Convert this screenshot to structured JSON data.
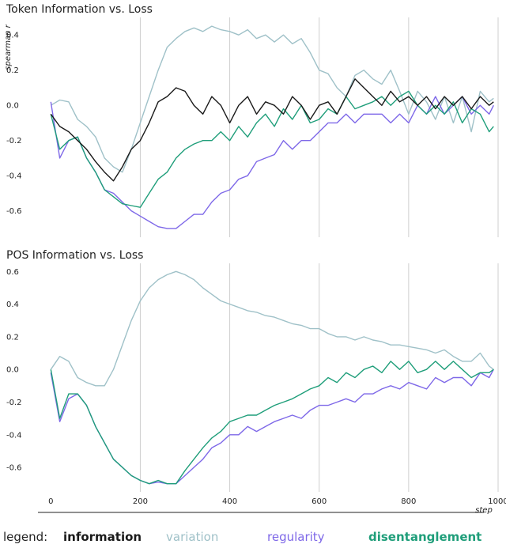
{
  "chart_data": [
    {
      "type": "line",
      "title": "Token Information vs. Loss",
      "ylabel": "spearman r",
      "xlabel": "",
      "xlim": [
        -50,
        1000
      ],
      "ylim": [
        -0.75,
        0.5
      ],
      "xticks": [
        0,
        200,
        400,
        600,
        800,
        1000
      ],
      "xtick_labels": [
        "",
        "",
        "",
        "",
        "",
        ""
      ],
      "yticks": [
        0.4,
        0.2,
        0.0,
        -0.2,
        -0.4,
        -0.6
      ],
      "ytick_labels": [
        "0.4",
        "0.2",
        "0.0",
        "-0.2",
        "-0.4",
        "-0.6"
      ],
      "grid": "vertical",
      "series": [
        {
          "name": "variation",
          "x": [
            0,
            20,
            40,
            60,
            80,
            100,
            120,
            140,
            160,
            180,
            200,
            220,
            240,
            260,
            280,
            300,
            320,
            340,
            360,
            380,
            400,
            420,
            440,
            460,
            480,
            500,
            520,
            540,
            560,
            580,
            600,
            620,
            640,
            660,
            680,
            700,
            720,
            740,
            760,
            780,
            800,
            820,
            840,
            860,
            880,
            900,
            920,
            940,
            960,
            980,
            990
          ],
          "y": [
            0.0,
            0.03,
            0.02,
            -0.08,
            -0.12,
            -0.18,
            -0.3,
            -0.35,
            -0.38,
            -0.25,
            -0.1,
            0.05,
            0.2,
            0.33,
            0.38,
            0.42,
            0.44,
            0.42,
            0.45,
            0.43,
            0.42,
            0.4,
            0.43,
            0.38,
            0.4,
            0.36,
            0.4,
            0.35,
            0.38,
            0.3,
            0.2,
            0.18,
            0.1,
            0.05,
            0.17,
            0.2,
            0.15,
            0.12,
            0.2,
            0.08,
            -0.05,
            0.08,
            0.02,
            -0.08,
            0.05,
            -0.1,
            0.05,
            -0.15,
            0.08,
            0.02,
            0.04
          ]
        },
        {
          "name": "regularity",
          "x": [
            0,
            20,
            40,
            60,
            80,
            100,
            120,
            140,
            160,
            180,
            200,
            220,
            240,
            260,
            280,
            300,
            320,
            340,
            360,
            380,
            400,
            420,
            440,
            460,
            480,
            500,
            520,
            540,
            560,
            580,
            600,
            620,
            640,
            660,
            680,
            700,
            720,
            740,
            760,
            780,
            800,
            820,
            840,
            860,
            880,
            900,
            920,
            940,
            960,
            980,
            990
          ],
          "y": [
            0.02,
            -0.3,
            -0.2,
            -0.18,
            -0.3,
            -0.38,
            -0.48,
            -0.5,
            -0.55,
            -0.6,
            -0.63,
            -0.66,
            -0.69,
            -0.7,
            -0.7,
            -0.66,
            -0.62,
            -0.62,
            -0.55,
            -0.5,
            -0.48,
            -0.42,
            -0.4,
            -0.32,
            -0.3,
            -0.28,
            -0.2,
            -0.25,
            -0.2,
            -0.2,
            -0.15,
            -0.1,
            -0.1,
            -0.05,
            -0.1,
            -0.05,
            -0.05,
            -0.05,
            -0.1,
            -0.05,
            -0.1,
            0.0,
            -0.05,
            0.05,
            -0.05,
            0.0,
            0.05,
            -0.05,
            0.0,
            -0.05,
            0.0
          ]
        },
        {
          "name": "disentanglement",
          "x": [
            0,
            20,
            40,
            60,
            80,
            100,
            120,
            140,
            160,
            180,
            200,
            220,
            240,
            260,
            280,
            300,
            320,
            340,
            360,
            380,
            400,
            420,
            440,
            460,
            480,
            500,
            520,
            540,
            560,
            580,
            600,
            620,
            640,
            660,
            680,
            700,
            720,
            740,
            760,
            780,
            800,
            820,
            840,
            860,
            880,
            900,
            920,
            940,
            960,
            980,
            990
          ],
          "y": [
            -0.05,
            -0.25,
            -0.2,
            -0.18,
            -0.3,
            -0.38,
            -0.48,
            -0.52,
            -0.56,
            -0.57,
            -0.58,
            -0.5,
            -0.42,
            -0.38,
            -0.3,
            -0.25,
            -0.22,
            -0.2,
            -0.2,
            -0.15,
            -0.2,
            -0.12,
            -0.18,
            -0.1,
            -0.05,
            -0.12,
            -0.02,
            -0.08,
            0.0,
            -0.1,
            -0.08,
            -0.02,
            -0.05,
            0.05,
            -0.02,
            0.0,
            0.02,
            0.05,
            0.0,
            0.05,
            0.08,
            0.0,
            -0.05,
            0.0,
            -0.05,
            0.02,
            -0.1,
            -0.02,
            -0.05,
            -0.15,
            -0.12
          ]
        },
        {
          "name": "information",
          "x": [
            0,
            20,
            40,
            60,
            80,
            100,
            120,
            140,
            160,
            180,
            200,
            220,
            240,
            260,
            280,
            300,
            320,
            340,
            360,
            380,
            400,
            420,
            440,
            460,
            480,
            500,
            520,
            540,
            560,
            580,
            600,
            620,
            640,
            660,
            680,
            700,
            720,
            740,
            760,
            780,
            800,
            820,
            840,
            860,
            880,
            900,
            920,
            940,
            960,
            980,
            990
          ],
          "y": [
            -0.05,
            -0.12,
            -0.15,
            -0.2,
            -0.25,
            -0.32,
            -0.38,
            -0.43,
            -0.35,
            -0.25,
            -0.2,
            -0.1,
            0.02,
            0.05,
            0.1,
            0.08,
            0.0,
            -0.05,
            0.05,
            0.0,
            -0.1,
            0.0,
            0.05,
            -0.05,
            0.02,
            0.0,
            -0.05,
            0.05,
            0.0,
            -0.08,
            0.0,
            0.02,
            -0.05,
            0.05,
            0.15,
            0.1,
            0.05,
            0.0,
            0.08,
            0.02,
            0.05,
            0.0,
            0.05,
            -0.02,
            0.05,
            0.0,
            0.05,
            -0.02,
            0.05,
            0.0,
            0.02
          ]
        }
      ]
    },
    {
      "type": "line",
      "title": "POS Information vs. Loss",
      "ylabel": "",
      "xlabel": "step",
      "xlim": [
        -50,
        1000
      ],
      "ylim": [
        -0.75,
        0.65
      ],
      "xticks": [
        0,
        200,
        400,
        600,
        800,
        1000
      ],
      "xtick_labels": [
        "0",
        "200",
        "400",
        "600",
        "800",
        "1000"
      ],
      "yticks": [
        0.6,
        0.4,
        0.2,
        0.0,
        -0.2,
        -0.4,
        -0.6
      ],
      "ytick_labels": [
        "0.6",
        "0.4",
        "0.2",
        "0.0",
        "-0.2",
        "-0.4",
        "-0.6"
      ],
      "grid": "vertical",
      "series": [
        {
          "name": "variation",
          "x": [
            0,
            20,
            40,
            60,
            80,
            100,
            120,
            140,
            160,
            180,
            200,
            220,
            240,
            260,
            280,
            300,
            320,
            340,
            360,
            380,
            400,
            420,
            440,
            460,
            480,
            500,
            520,
            540,
            560,
            580,
            600,
            620,
            640,
            660,
            680,
            700,
            720,
            740,
            760,
            780,
            800,
            820,
            840,
            860,
            880,
            900,
            920,
            940,
            960,
            980,
            990
          ],
          "y": [
            0.0,
            0.08,
            0.05,
            -0.05,
            -0.08,
            -0.1,
            -0.1,
            0.0,
            0.15,
            0.3,
            0.42,
            0.5,
            0.55,
            0.58,
            0.6,
            0.58,
            0.55,
            0.5,
            0.46,
            0.42,
            0.4,
            0.38,
            0.36,
            0.35,
            0.33,
            0.32,
            0.3,
            0.28,
            0.27,
            0.25,
            0.25,
            0.22,
            0.2,
            0.2,
            0.18,
            0.2,
            0.18,
            0.17,
            0.15,
            0.15,
            0.14,
            0.13,
            0.12,
            0.1,
            0.12,
            0.08,
            0.05,
            0.05,
            0.1,
            0.02,
            0.0
          ]
        },
        {
          "name": "regularity",
          "x": [
            0,
            20,
            40,
            60,
            80,
            100,
            120,
            140,
            160,
            180,
            200,
            220,
            240,
            260,
            280,
            300,
            320,
            340,
            360,
            380,
            400,
            420,
            440,
            460,
            480,
            500,
            520,
            540,
            560,
            580,
            600,
            620,
            640,
            660,
            680,
            700,
            720,
            740,
            760,
            780,
            800,
            820,
            840,
            860,
            880,
            900,
            920,
            940,
            960,
            980,
            990
          ],
          "y": [
            -0.02,
            -0.32,
            -0.18,
            -0.15,
            -0.22,
            -0.35,
            -0.45,
            -0.55,
            -0.6,
            -0.65,
            -0.68,
            -0.7,
            -0.69,
            -0.7,
            -0.7,
            -0.65,
            -0.6,
            -0.55,
            -0.48,
            -0.45,
            -0.4,
            -0.4,
            -0.35,
            -0.38,
            -0.35,
            -0.32,
            -0.3,
            -0.28,
            -0.3,
            -0.25,
            -0.22,
            -0.22,
            -0.2,
            -0.18,
            -0.2,
            -0.15,
            -0.15,
            -0.12,
            -0.1,
            -0.12,
            -0.08,
            -0.1,
            -0.12,
            -0.05,
            -0.08,
            -0.05,
            -0.05,
            -0.1,
            -0.02,
            -0.05,
            0.0
          ]
        },
        {
          "name": "disentanglement",
          "x": [
            0,
            20,
            40,
            60,
            80,
            100,
            120,
            140,
            160,
            180,
            200,
            220,
            240,
            260,
            280,
            300,
            320,
            340,
            360,
            380,
            400,
            420,
            440,
            460,
            480,
            500,
            520,
            540,
            560,
            580,
            600,
            620,
            640,
            660,
            680,
            700,
            720,
            740,
            760,
            780,
            800,
            820,
            840,
            860,
            880,
            900,
            920,
            940,
            960,
            980,
            990
          ],
          "y": [
            0.0,
            -0.3,
            -0.15,
            -0.15,
            -0.22,
            -0.35,
            -0.45,
            -0.55,
            -0.6,
            -0.65,
            -0.68,
            -0.7,
            -0.68,
            -0.7,
            -0.7,
            -0.62,
            -0.55,
            -0.48,
            -0.42,
            -0.38,
            -0.32,
            -0.3,
            -0.28,
            -0.28,
            -0.25,
            -0.22,
            -0.2,
            -0.18,
            -0.15,
            -0.12,
            -0.1,
            -0.05,
            -0.08,
            -0.02,
            -0.05,
            0.0,
            0.02,
            -0.02,
            0.05,
            0.0,
            0.05,
            -0.02,
            0.0,
            0.05,
            0.0,
            0.05,
            0.0,
            -0.05,
            -0.02,
            -0.02,
            0.0
          ]
        }
      ]
    }
  ],
  "legend": {
    "title": "legend:",
    "entries": [
      {
        "label": "information",
        "color": "#1a1a1a"
      },
      {
        "label": "variation",
        "color": "#9fc1c8"
      },
      {
        "label": "regularity",
        "color": "#7e68e8"
      },
      {
        "label": "disentanglement",
        "color": "#1f9e7a"
      }
    ]
  }
}
